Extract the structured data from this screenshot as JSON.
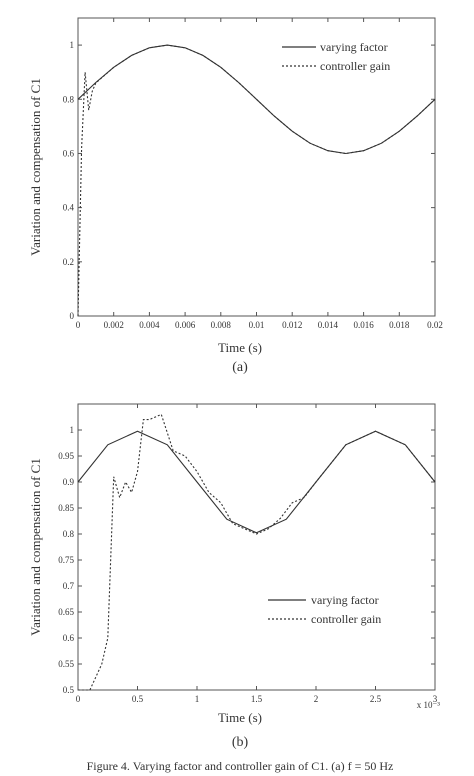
{
  "colors": {
    "ink": "#333333",
    "axis": "#555555",
    "background": "#ffffff"
  },
  "caption": "Figure 4. Varying factor and controller gain of C1. (a) f = 50 Hz",
  "chart_data": [
    {
      "panel": "(a)",
      "type": "line",
      "xlabel": "Time (s)",
      "ylabel": "Variation and compensation of C1",
      "xlim": [
        0,
        0.02
      ],
      "ylim": [
        0,
        1.1
      ],
      "x_ticks": [
        "0",
        "0.002",
        "0.004",
        "0.006",
        "0.008",
        "0.01",
        "0.012",
        "0.014",
        "0.016",
        "0.018",
        "0.02"
      ],
      "x_tick_values": [
        0,
        0.002,
        0.004,
        0.006,
        0.008,
        0.01,
        0.012,
        0.014,
        0.016,
        0.018,
        0.02
      ],
      "y_ticks": [
        "0",
        "0.2",
        "0.4",
        "0.6",
        "0.8",
        "1"
      ],
      "y_tick_values": [
        0,
        0.2,
        0.4,
        0.6,
        0.8,
        1
      ],
      "legend": {
        "position": "top-right",
        "entries": [
          "varying factor",
          "controller gain"
        ]
      },
      "grid": false,
      "series": [
        {
          "name": "varying factor",
          "style": "solid",
          "x": [
            0,
            0.001,
            0.002,
            0.003,
            0.004,
            0.005,
            0.006,
            0.007,
            0.008,
            0.009,
            0.01,
            0.011,
            0.012,
            0.013,
            0.014,
            0.015,
            0.016,
            0.017,
            0.018,
            0.019,
            0.02
          ],
          "values": [
            0.8,
            0.862,
            0.918,
            0.962,
            0.99,
            1.0,
            0.99,
            0.962,
            0.918,
            0.862,
            0.8,
            0.738,
            0.682,
            0.638,
            0.61,
            0.6,
            0.61,
            0.638,
            0.682,
            0.738,
            0.8
          ]
        },
        {
          "name": "controller gain",
          "style": "dashed",
          "x": [
            0,
            0.0002,
            0.0004,
            0.0006,
            0.0008,
            0.001,
            0.002,
            0.003,
            0.004,
            0.005,
            0.006,
            0.007,
            0.008,
            0.009,
            0.01,
            0.011,
            0.012,
            0.013,
            0.014,
            0.015,
            0.016,
            0.017,
            0.018,
            0.019,
            0.02
          ],
          "values": [
            0.0,
            0.62,
            0.9,
            0.76,
            0.83,
            0.86,
            0.918,
            0.962,
            0.99,
            1.0,
            0.99,
            0.962,
            0.918,
            0.862,
            0.8,
            0.738,
            0.682,
            0.638,
            0.61,
            0.6,
            0.61,
            0.638,
            0.682,
            0.738,
            0.8
          ]
        }
      ]
    },
    {
      "panel": "(b)",
      "type": "line",
      "xlabel": "Time (s)",
      "ylabel": "Variation and compensation of C1",
      "x_multiplier": "x 10⁻³",
      "xlim": [
        0,
        3
      ],
      "ylim": [
        0.5,
        1.05
      ],
      "x_ticks": [
        "0",
        "0.5",
        "1",
        "1.5",
        "2",
        "2.5",
        "3"
      ],
      "x_tick_values": [
        0,
        0.5,
        1,
        1.5,
        2,
        2.5,
        3
      ],
      "y_ticks": [
        "0.5",
        "0.55",
        "0.6",
        "0.65",
        "0.7",
        "0.75",
        "0.8",
        "0.85",
        "0.9",
        "0.95",
        "1"
      ],
      "y_tick_values": [
        0.5,
        0.55,
        0.6,
        0.65,
        0.7,
        0.75,
        0.8,
        0.85,
        0.9,
        0.95,
        1.0
      ],
      "legend": {
        "position": "lower-right",
        "entries": [
          "varying factor",
          "controller gain"
        ]
      },
      "grid": false,
      "series": [
        {
          "name": "varying factor",
          "style": "solid",
          "x": [
            0,
            0.25,
            0.5,
            0.75,
            1.0,
            1.25,
            1.5,
            1.75,
            2.0,
            2.25,
            2.5,
            2.75,
            3.0
          ],
          "values": [
            0.9,
            0.9716,
            0.9977,
            0.9716,
            0.9,
            0.8284,
            0.8023,
            0.8284,
            0.9,
            0.9716,
            0.9977,
            0.9716,
            0.9
          ]
        },
        {
          "name": "controller gain",
          "style": "dashed",
          "x": [
            0,
            0.1,
            0.2,
            0.25,
            0.3,
            0.35,
            0.4,
            0.45,
            0.5,
            0.55,
            0.6,
            0.7,
            0.8,
            0.9,
            1.0,
            1.1,
            1.2,
            1.3,
            1.4,
            1.5,
            1.6,
            1.7,
            1.8,
            1.9,
            2.0,
            2.25,
            2.5,
            2.75,
            3.0
          ],
          "values": [
            0.5,
            0.5,
            0.55,
            0.6,
            0.91,
            0.87,
            0.9,
            0.88,
            0.92,
            1.02,
            1.02,
            1.03,
            0.96,
            0.95,
            0.92,
            0.88,
            0.86,
            0.82,
            0.81,
            0.8,
            0.81,
            0.83,
            0.86,
            0.87,
            0.9,
            0.9716,
            0.9977,
            0.9716,
            0.9
          ]
        }
      ]
    }
  ]
}
